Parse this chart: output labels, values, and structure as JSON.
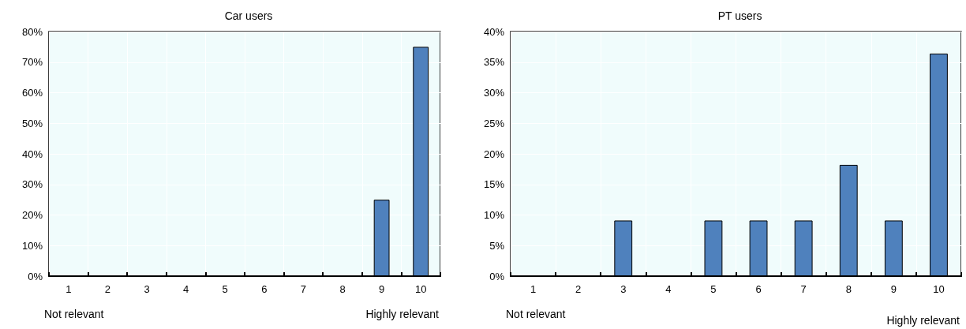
{
  "chart_data": [
    {
      "type": "bar",
      "title": "Car users",
      "categories": [
        "1",
        "2",
        "3",
        "4",
        "5",
        "6",
        "7",
        "8",
        "9",
        "10"
      ],
      "values": [
        0,
        0,
        0,
        0,
        0,
        0,
        0,
        0,
        25,
        75
      ],
      "color": "#4f81bd",
      "ylim": [
        0,
        80
      ],
      "yticks": [
        {
          "value": 0,
          "label": "0%"
        },
        {
          "value": 10,
          "label": "10%"
        },
        {
          "value": 20,
          "label": "20%"
        },
        {
          "value": 30,
          "label": "30%"
        },
        {
          "value": 40,
          "label": "40%"
        },
        {
          "value": 50,
          "label": "50%"
        },
        {
          "value": 60,
          "label": "60%"
        },
        {
          "value": 70,
          "label": "70%"
        },
        {
          "value": 80,
          "label": "80%"
        }
      ],
      "grid": true,
      "annotations": [
        "Not relevant",
        "Highly relevant"
      ]
    },
    {
      "type": "bar",
      "title": "PT users",
      "categories": [
        "1",
        "2",
        "3",
        "4",
        "5",
        "6",
        "7",
        "8",
        "9",
        "10"
      ],
      "values": [
        0,
        0,
        9.1,
        0,
        9.1,
        9.1,
        9.1,
        18.2,
        9.1,
        36.4
      ],
      "color": "#4f81bd",
      "ylim": [
        0,
        40
      ],
      "yticks": [
        {
          "value": 0,
          "label": "0%"
        },
        {
          "value": 5,
          "label": "5%"
        },
        {
          "value": 10,
          "label": "10%"
        },
        {
          "value": 15,
          "label": "15%"
        },
        {
          "value": 20,
          "label": "20%"
        },
        {
          "value": 25,
          "label": "25%"
        },
        {
          "value": 30,
          "label": "30%"
        },
        {
          "value": 35,
          "label": "35%"
        },
        {
          "value": 40,
          "label": "40%"
        }
      ],
      "grid": true,
      "annotations": [
        "Not relevant",
        "Highly relevant"
      ]
    }
  ]
}
